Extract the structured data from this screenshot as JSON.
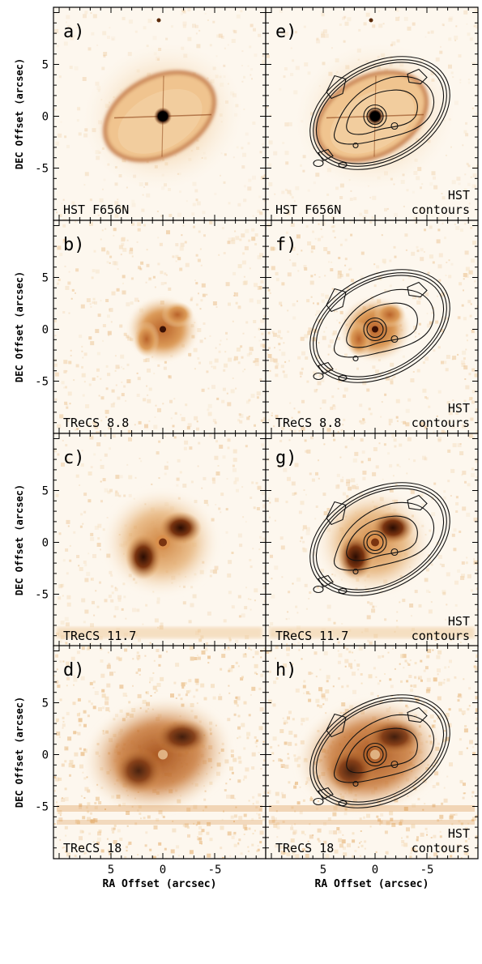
{
  "figure": {
    "x_axis_label": "RA Offset (arcsec)",
    "y_axis_label": "DEC Offset (arcsec)",
    "x_ticks": [
      5,
      0,
      -5
    ],
    "y_ticks": [
      5,
      0,
      -5
    ],
    "panels": [
      {
        "letter": "a)",
        "label": "HST F656N",
        "corner_label": [],
        "kind": "hst"
      },
      {
        "letter": "e)",
        "label": "HST F656N",
        "corner_label": [
          "HST",
          "contours"
        ],
        "kind": "hst",
        "contours": true
      },
      {
        "letter": "b)",
        "label": "TReCS 8.8",
        "corner_label": [],
        "kind": "t88"
      },
      {
        "letter": "f)",
        "label": "TReCS 8.8",
        "corner_label": [
          "HST",
          "contours"
        ],
        "kind": "t88",
        "contours": true
      },
      {
        "letter": "c)",
        "label": "TReCS 11.7",
        "corner_label": [],
        "kind": "t117"
      },
      {
        "letter": "g)",
        "label": "TReCS 11.7",
        "corner_label": [
          "HST",
          "contours"
        ],
        "kind": "t117",
        "contours": true
      },
      {
        "letter": "d)",
        "label": "TReCS 18",
        "corner_label": [],
        "kind": "t18"
      },
      {
        "letter": "h)",
        "label": "TReCS 18",
        "corner_label": [
          "HST",
          "contours"
        ],
        "kind": "t18",
        "contours": true
      }
    ]
  },
  "colors": {
    "background": "#fdf7ee",
    "light": "#f3d9b5",
    "mid": "#d9944c",
    "dark": "#8a3f14",
    "darkest": "#2a0c02",
    "contour": "#111111"
  }
}
